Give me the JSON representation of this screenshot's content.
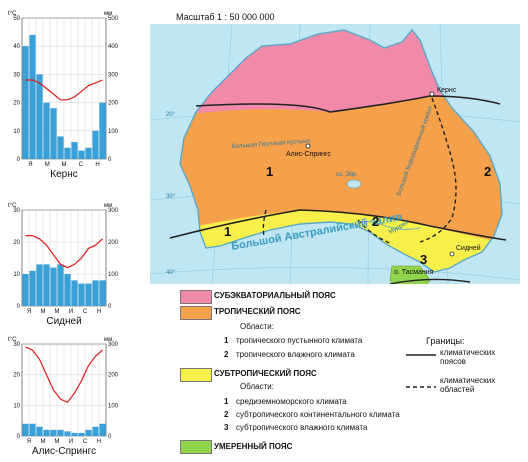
{
  "map": {
    "scale": "Масштаб 1 : 50 000 000",
    "places": {
      "cairns": "Кернс",
      "alice": "Алис-Спрингс",
      "sydney": "Сидней",
      "tasmania": "о. Тасмания",
      "gulf": "Большой Австралийский залив",
      "desert": "Большая Песчаная пустыня",
      "lake": "оз. Эйр",
      "range": "Большой Водораздельный хребет",
      "murray": "Муррей"
    },
    "regions": [
      "1",
      "2",
      "1",
      "2",
      "3"
    ],
    "lat_ticks": [
      "20°",
      "30°",
      "40°"
    ]
  },
  "charts": [
    {
      "title": "Кернс",
      "left_unit": "t°C",
      "right_unit": "мм",
      "left_ticks": [
        "50",
        "40",
        "30",
        "20",
        "10",
        "0"
      ],
      "right_ticks": [
        "500",
        "400",
        "300",
        "200",
        "100",
        "0"
      ],
      "months": [
        "Я",
        "М",
        "М",
        "С",
        "Н"
      ],
      "precip_mm": [
        400,
        440,
        300,
        200,
        180,
        80,
        40,
        60,
        30,
        40,
        100,
        200
      ],
      "temp_c": [
        28,
        28,
        27,
        25,
        23,
        21,
        21,
        22,
        24,
        26,
        27,
        28
      ],
      "temp_range": [
        0,
        50
      ],
      "precip_range": [
        0,
        500
      ]
    },
    {
      "title": "Сидней",
      "left_unit": "t°C",
      "right_unit": "мм",
      "left_ticks": [
        "30",
        "20",
        "10",
        "0"
      ],
      "right_ticks": [
        "300",
        "200",
        "100",
        "0"
      ],
      "months": [
        "Я",
        "М",
        "М",
        "И",
        "С",
        "Н"
      ],
      "precip_mm": [
        100,
        110,
        130,
        130,
        120,
        130,
        100,
        80,
        70,
        70,
        80,
        80
      ],
      "temp_c": [
        22,
        22,
        21,
        19,
        16,
        13,
        12,
        13,
        15,
        18,
        19,
        21
      ],
      "temp_range": [
        0,
        30
      ],
      "precip_range": [
        0,
        300
      ]
    },
    {
      "title": "Алис-Спрингс",
      "left_unit": "t°C",
      "right_unit": "мм",
      "left_ticks": [
        "30",
        "20",
        "10",
        "0"
      ],
      "right_ticks": [
        "300",
        "200",
        "100",
        "0"
      ],
      "months": [
        "Я",
        "М",
        "М",
        "И",
        "С",
        "Н"
      ],
      "precip_mm": [
        40,
        40,
        30,
        20,
        20,
        20,
        15,
        10,
        10,
        20,
        30,
        40
      ],
      "temp_c": [
        29,
        28,
        25,
        20,
        15,
        12,
        11,
        14,
        18,
        23,
        26,
        28
      ],
      "temp_range": [
        0,
        30
      ],
      "precip_range": [
        0,
        300
      ]
    }
  ],
  "legend": {
    "belts": [
      {
        "label": "СУБЭКВАТОРИАЛЬНЫЙ ПОЯС",
        "color": "#f08aa8"
      },
      {
        "label": "ТРОПИЧЕСКИЙ ПОЯС",
        "color": "#f5a04a"
      },
      {
        "label": "СУБТРОПИЧЕСКИЙ ПОЯС",
        "color": "#f7f04a"
      },
      {
        "label": "УМЕРЕННЫЙ ПОЯС",
        "color": "#8fd44a"
      }
    ],
    "areas_title": "Области:",
    "tropical_areas": [
      {
        "num": "1",
        "label": "тропического пустынного климата"
      },
      {
        "num": "2",
        "label": "тропического влажного климата"
      }
    ],
    "subtropical_areas": [
      {
        "num": "1",
        "label": "средиземноморского климата"
      },
      {
        "num": "2",
        "label": "субтропического континентального климата"
      },
      {
        "num": "3",
        "label": "субтропического влажного климата"
      }
    ],
    "borders_title": "Границы:",
    "borders": [
      {
        "label": "климатических поясов",
        "style": "solid"
      },
      {
        "label": "климатических областей",
        "style": "dashed"
      }
    ]
  }
}
